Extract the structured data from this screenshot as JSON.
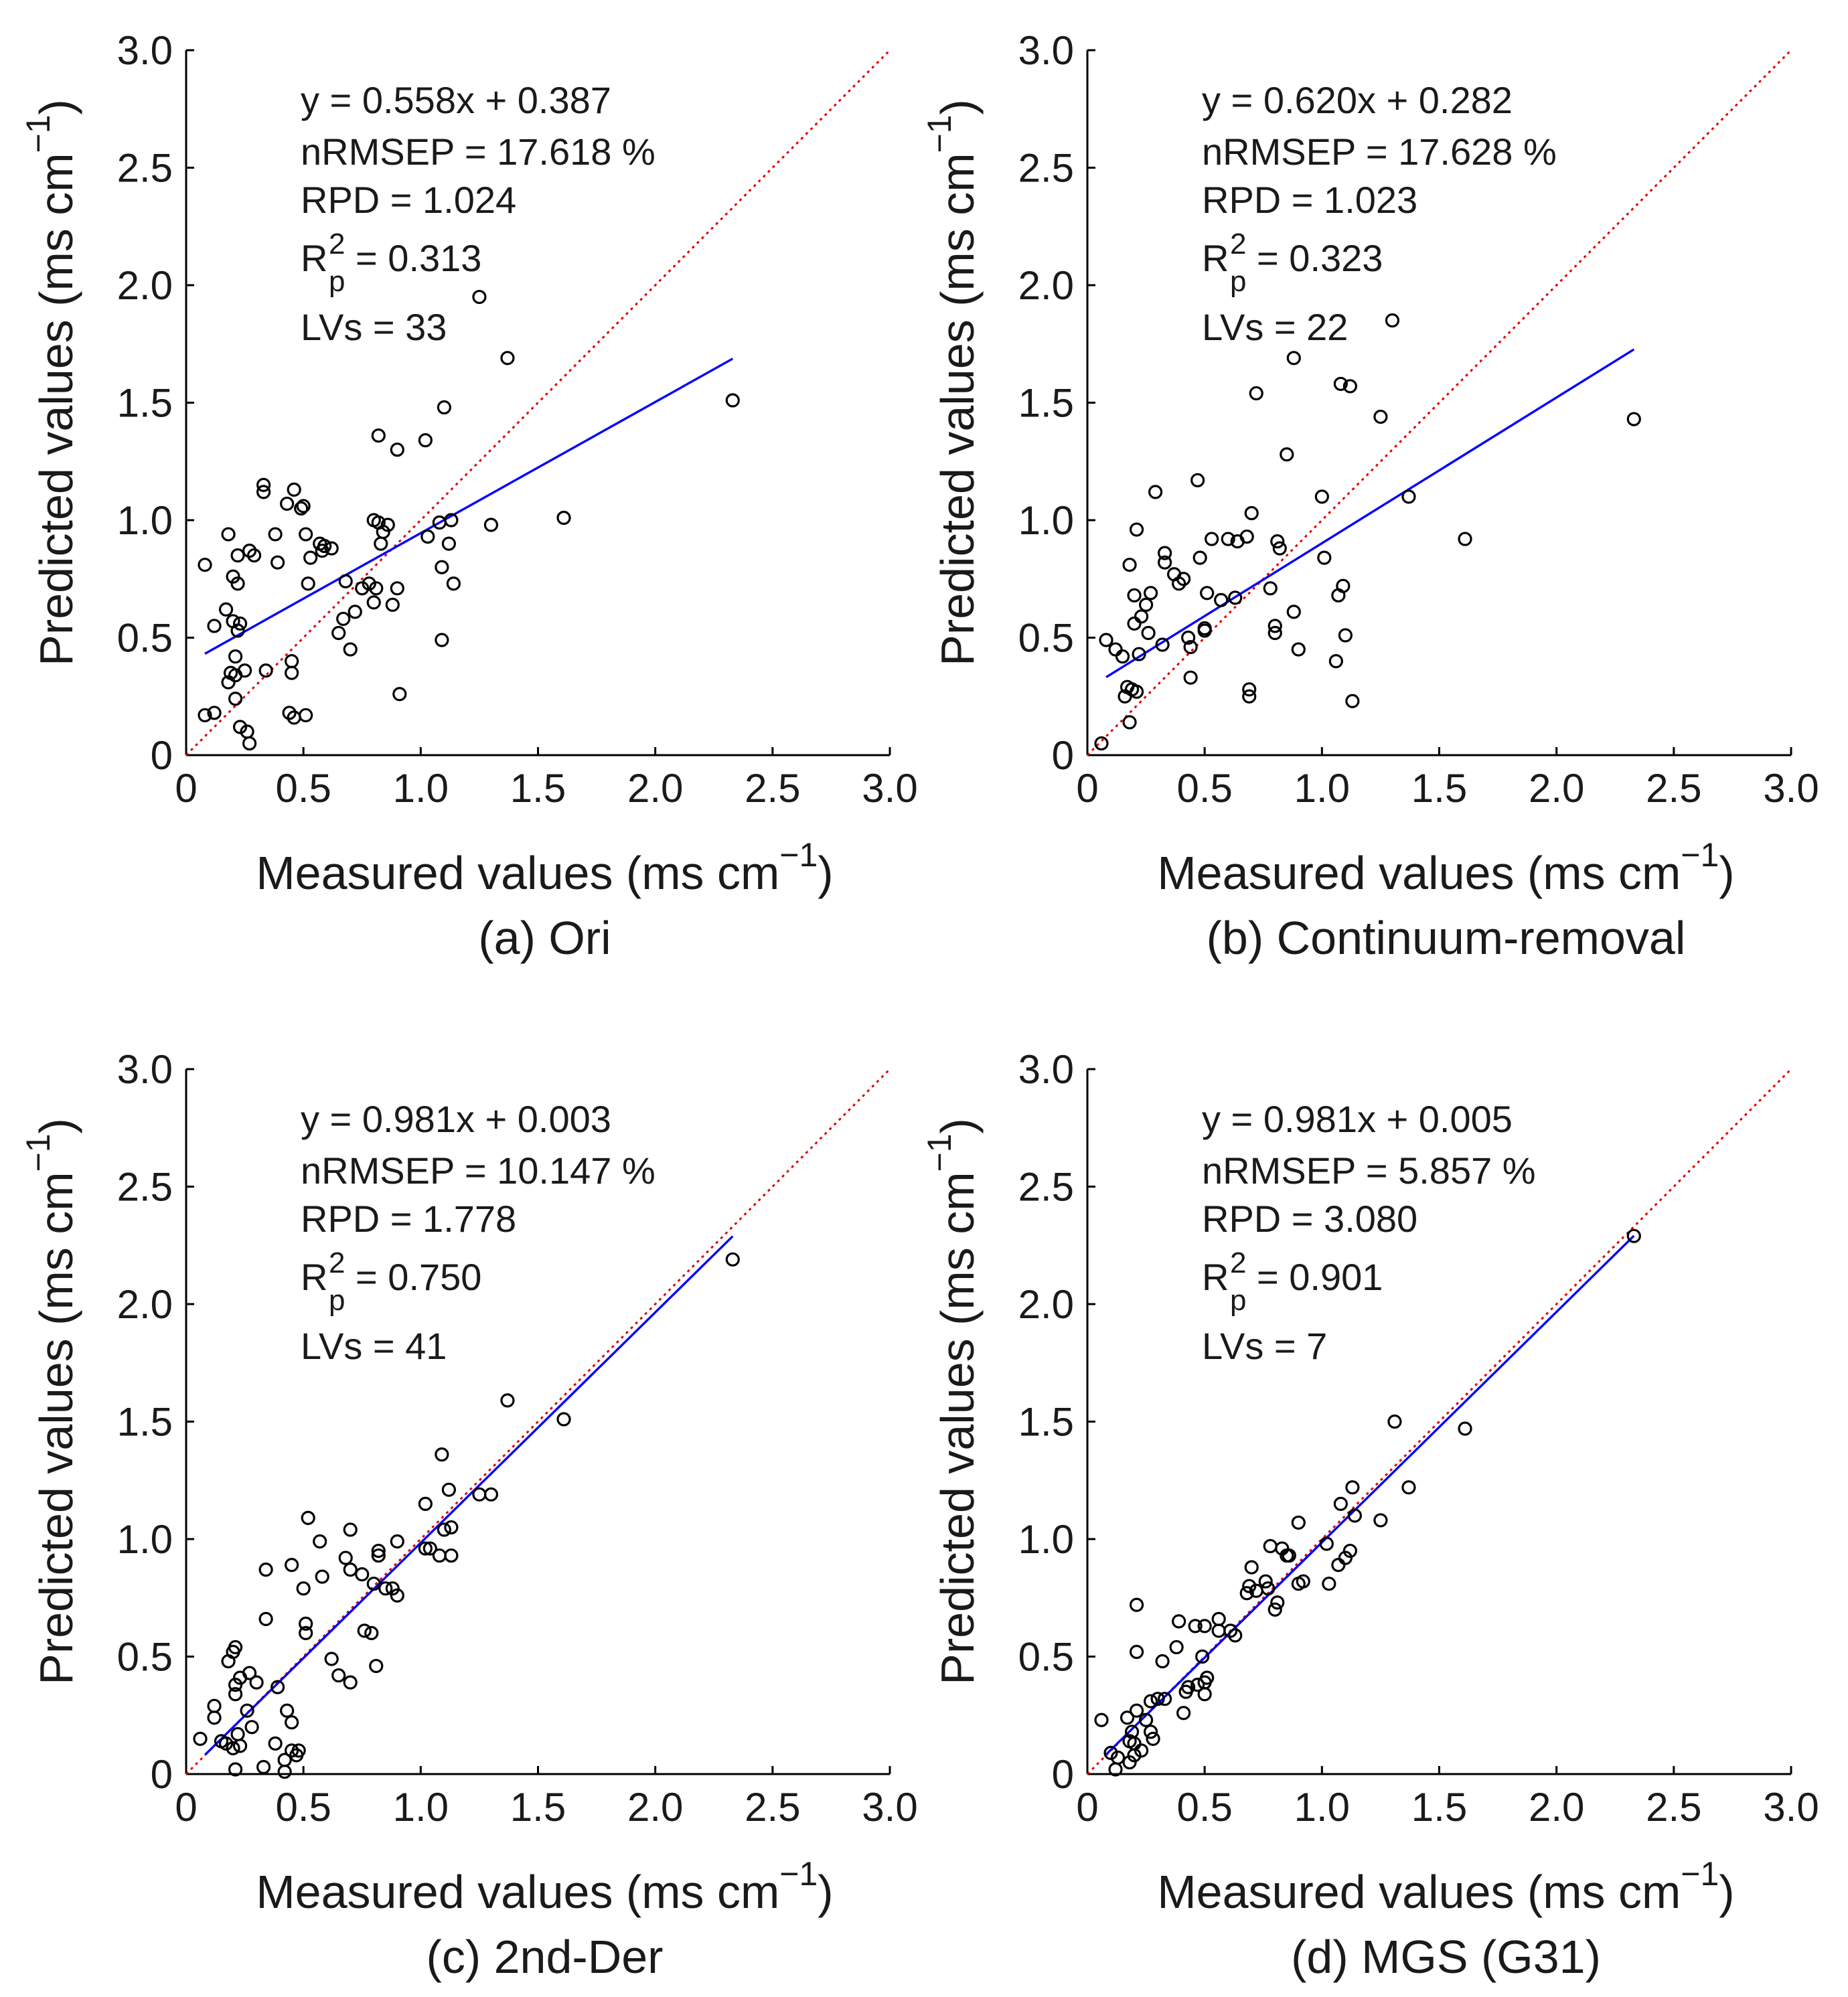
{
  "chart_data": [
    {
      "type": "scatter",
      "caption": "(a) Ori",
      "xlabel": "Measured values (ms cm",
      "ylabel": "Predicted values (ms cm",
      "unit_exponent": "−1",
      "xlim": [
        0,
        3
      ],
      "ylim": [
        0,
        3
      ],
      "xticks": [
        "0",
        "0.5",
        "1.0",
        "1.5",
        "2.0",
        "2.5",
        "3.0"
      ],
      "yticks": [
        "0",
        "0.5",
        "1.0",
        "1.5",
        "2.0",
        "2.5",
        "3.0"
      ],
      "stats": {
        "equation": "y = 0.558x + 0.387",
        "nrmsep": "nRMSEP = 17.618 %",
        "rpd": "RPD = 1.024",
        "r2_base": "R",
        "r2_sup": "2",
        "r2_sub": "p",
        "r2_value": " = 0.313",
        "lvs": "LVs = 33"
      },
      "fit": {
        "slope": 0.558,
        "intercept": 0.387,
        "x_range": [
          0.08,
          2.33
        ]
      },
      "reference_line": "y = x",
      "points": [
        [
          0.08,
          0.81
        ],
        [
          0.08,
          0.17
        ],
        [
          0.12,
          0.18
        ],
        [
          0.12,
          0.55
        ],
        [
          0.17,
          0.62
        ],
        [
          0.18,
          0.94
        ],
        [
          0.18,
          0.31
        ],
        [
          0.19,
          0.35
        ],
        [
          0.2,
          0.76
        ],
        [
          0.2,
          0.57
        ],
        [
          0.21,
          0.42
        ],
        [
          0.21,
          0.24
        ],
        [
          0.21,
          0.34
        ],
        [
          0.22,
          0.73
        ],
        [
          0.22,
          0.53
        ],
        [
          0.22,
          0.85
        ],
        [
          0.23,
          0.56
        ],
        [
          0.23,
          0.12
        ],
        [
          0.25,
          0.36
        ],
        [
          0.26,
          0.1
        ],
        [
          0.27,
          0.05
        ],
        [
          0.27,
          0.87
        ],
        [
          0.29,
          0.85
        ],
        [
          0.33,
          1.15
        ],
        [
          0.33,
          1.12
        ],
        [
          0.34,
          0.36
        ],
        [
          0.38,
          0.94
        ],
        [
          0.39,
          0.82
        ],
        [
          0.43,
          1.07
        ],
        [
          0.44,
          0.18
        ],
        [
          0.45,
          0.4
        ],
        [
          0.45,
          0.35
        ],
        [
          0.46,
          0.16
        ],
        [
          0.46,
          1.13
        ],
        [
          0.49,
          1.05
        ],
        [
          0.5,
          1.06
        ],
        [
          0.51,
          0.94
        ],
        [
          0.51,
          0.17
        ],
        [
          0.52,
          0.73
        ],
        [
          0.53,
          0.84
        ],
        [
          0.57,
          0.9
        ],
        [
          0.58,
          0.87
        ],
        [
          0.59,
          0.89
        ],
        [
          0.62,
          0.88
        ],
        [
          0.65,
          0.52
        ],
        [
          0.67,
          0.58
        ],
        [
          0.68,
          0.74
        ],
        [
          0.7,
          0.45
        ],
        [
          0.72,
          0.61
        ],
        [
          0.75,
          0.71
        ],
        [
          0.78,
          0.73
        ],
        [
          0.8,
          1.0
        ],
        [
          0.8,
          0.65
        ],
        [
          0.81,
          0.71
        ],
        [
          0.82,
          0.99
        ],
        [
          0.82,
          1.36
        ],
        [
          0.83,
          0.9
        ],
        [
          0.84,
          0.95
        ],
        [
          0.86,
          0.98
        ],
        [
          0.88,
          0.64
        ],
        [
          0.9,
          0.71
        ],
        [
          0.9,
          1.3
        ],
        [
          0.91,
          0.26
        ],
        [
          1.02,
          1.34
        ],
        [
          1.03,
          0.93
        ],
        [
          1.08,
          0.99
        ],
        [
          1.09,
          0.49
        ],
        [
          1.09,
          0.8
        ],
        [
          1.1,
          1.48
        ],
        [
          1.12,
          0.9
        ],
        [
          1.13,
          1.0
        ],
        [
          1.14,
          0.73
        ],
        [
          1.25,
          1.95
        ],
        [
          1.3,
          0.98
        ],
        [
          1.37,
          1.69
        ],
        [
          1.61,
          1.01
        ],
        [
          2.33,
          1.51
        ]
      ]
    },
    {
      "type": "scatter",
      "caption": "(b) Continuum-removal",
      "xlabel": "Measured values (ms cm",
      "ylabel": "Predicted values (ms cm",
      "unit_exponent": "−1",
      "xlim": [
        0,
        3
      ],
      "ylim": [
        0,
        3
      ],
      "xticks": [
        "0",
        "0.5",
        "1.0",
        "1.5",
        "2.0",
        "2.5",
        "3.0"
      ],
      "yticks": [
        "0",
        "0.5",
        "1.0",
        "1.5",
        "2.0",
        "2.5",
        "3.0"
      ],
      "stats": {
        "equation": "y = 0.620x + 0.282",
        "nrmsep": "nRMSEP = 17.628 %",
        "rpd": "RPD = 1.023",
        "r2_base": "R",
        "r2_sup": "2",
        "r2_sub": "p",
        "r2_value": " = 0.323",
        "lvs": "LVs = 22"
      },
      "fit": {
        "slope": 0.62,
        "intercept": 0.282,
        "x_range": [
          0.08,
          2.33
        ]
      },
      "reference_line": "y = x",
      "points": [
        [
          0.06,
          0.05
        ],
        [
          0.08,
          0.49
        ],
        [
          0.12,
          0.45
        ],
        [
          0.15,
          0.42
        ],
        [
          0.16,
          0.25
        ],
        [
          0.17,
          0.29
        ],
        [
          0.18,
          0.14
        ],
        [
          0.18,
          0.81
        ],
        [
          0.19,
          0.28
        ],
        [
          0.2,
          0.56
        ],
        [
          0.2,
          0.68
        ],
        [
          0.21,
          0.27
        ],
        [
          0.21,
          0.96
        ],
        [
          0.22,
          0.43
        ],
        [
          0.23,
          0.59
        ],
        [
          0.25,
          0.64
        ],
        [
          0.26,
          0.52
        ],
        [
          0.27,
          0.69
        ],
        [
          0.29,
          1.12
        ],
        [
          0.32,
          0.47
        ],
        [
          0.33,
          0.82
        ],
        [
          0.33,
          0.86
        ],
        [
          0.37,
          0.77
        ],
        [
          0.39,
          0.73
        ],
        [
          0.41,
          0.75
        ],
        [
          0.43,
          0.5
        ],
        [
          0.44,
          0.46
        ],
        [
          0.44,
          0.33
        ],
        [
          0.47,
          1.17
        ],
        [
          0.48,
          0.84
        ],
        [
          0.5,
          0.53
        ],
        [
          0.5,
          0.54
        ],
        [
          0.51,
          0.69
        ],
        [
          0.53,
          0.92
        ],
        [
          0.57,
          0.66
        ],
        [
          0.6,
          0.92
        ],
        [
          0.63,
          0.67
        ],
        [
          0.64,
          0.91
        ],
        [
          0.68,
          0.93
        ],
        [
          0.69,
          0.25
        ],
        [
          0.69,
          0.28
        ],
        [
          0.7,
          1.03
        ],
        [
          0.72,
          1.54
        ],
        [
          0.78,
          0.71
        ],
        [
          0.8,
          0.55
        ],
        [
          0.8,
          0.52
        ],
        [
          0.81,
          0.91
        ],
        [
          0.82,
          0.88
        ],
        [
          0.85,
          1.28
        ],
        [
          0.88,
          0.61
        ],
        [
          0.88,
          1.69
        ],
        [
          0.9,
          0.45
        ],
        [
          1.0,
          1.1
        ],
        [
          1.01,
          0.84
        ],
        [
          1.06,
          0.4
        ],
        [
          1.07,
          0.68
        ],
        [
          1.08,
          1.58
        ],
        [
          1.09,
          0.72
        ],
        [
          1.1,
          0.51
        ],
        [
          1.12,
          1.57
        ],
        [
          1.13,
          0.23
        ],
        [
          1.25,
          1.44
        ],
        [
          1.3,
          1.85
        ],
        [
          1.37,
          1.1
        ],
        [
          1.61,
          0.92
        ],
        [
          2.33,
          1.43
        ]
      ]
    },
    {
      "type": "scatter",
      "caption": "(c) 2nd-Der",
      "xlabel": "Measured values (ms cm",
      "ylabel": "Predicted values (ms cm",
      "unit_exponent": "−1",
      "xlim": [
        0,
        3
      ],
      "ylim": [
        0,
        3
      ],
      "xticks": [
        "0",
        "0.5",
        "1.0",
        "1.5",
        "2.0",
        "2.5",
        "3.0"
      ],
      "yticks": [
        "0",
        "0.5",
        "1.0",
        "1.5",
        "2.0",
        "2.5",
        "3.0"
      ],
      "stats": {
        "equation": "y = 0.981x + 0.003",
        "nrmsep": "nRMSEP = 10.147 %",
        "rpd": "RPD = 1.778",
        "r2_base": "R",
        "r2_sup": "2",
        "r2_sub": "p",
        "r2_value": " = 0.750",
        "lvs": "LVs = 41"
      },
      "fit": {
        "slope": 0.981,
        "intercept": 0.003,
        "x_range": [
          0.08,
          2.33
        ]
      },
      "reference_line": "y = x",
      "points": [
        [
          0.06,
          0.15
        ],
        [
          0.12,
          0.24
        ],
        [
          0.12,
          0.29
        ],
        [
          0.15,
          0.14
        ],
        [
          0.17,
          0.13
        ],
        [
          0.18,
          0.48
        ],
        [
          0.2,
          0.52
        ],
        [
          0.2,
          0.11
        ],
        [
          0.21,
          0.02
        ],
        [
          0.21,
          0.34
        ],
        [
          0.21,
          0.54
        ],
        [
          0.21,
          0.38
        ],
        [
          0.22,
          0.17
        ],
        [
          0.23,
          0.41
        ],
        [
          0.23,
          0.12
        ],
        [
          0.26,
          0.27
        ],
        [
          0.27,
          0.43
        ],
        [
          0.28,
          0.2
        ],
        [
          0.3,
          0.39
        ],
        [
          0.33,
          0.03
        ],
        [
          0.34,
          0.87
        ],
        [
          0.34,
          0.66
        ],
        [
          0.38,
          0.13
        ],
        [
          0.39,
          0.37
        ],
        [
          0.42,
          0.01
        ],
        [
          0.42,
          0.06
        ],
        [
          0.43,
          0.27
        ],
        [
          0.45,
          0.1
        ],
        [
          0.45,
          0.89
        ],
        [
          0.45,
          0.22
        ],
        [
          0.47,
          0.08
        ],
        [
          0.48,
          0.1
        ],
        [
          0.5,
          0.79
        ],
        [
          0.51,
          0.6
        ],
        [
          0.51,
          0.64
        ],
        [
          0.52,
          1.09
        ],
        [
          0.57,
          0.99
        ],
        [
          0.58,
          0.84
        ],
        [
          0.62,
          0.49
        ],
        [
          0.65,
          0.42
        ],
        [
          0.68,
          0.92
        ],
        [
          0.7,
          0.87
        ],
        [
          0.7,
          1.04
        ],
        [
          0.7,
          0.39
        ],
        [
          0.75,
          0.85
        ],
        [
          0.76,
          0.61
        ],
        [
          0.79,
          0.6
        ],
        [
          0.8,
          0.81
        ],
        [
          0.81,
          0.46
        ],
        [
          0.82,
          0.95
        ],
        [
          0.82,
          0.93
        ],
        [
          0.85,
          0.79
        ],
        [
          0.88,
          0.79
        ],
        [
          0.9,
          0.76
        ],
        [
          0.9,
          0.99
        ],
        [
          1.02,
          0.96
        ],
        [
          1.02,
          1.15
        ],
        [
          1.04,
          0.96
        ],
        [
          1.08,
          0.93
        ],
        [
          1.09,
          1.36
        ],
        [
          1.1,
          1.04
        ],
        [
          1.12,
          1.21
        ],
        [
          1.13,
          1.05
        ],
        [
          1.13,
          0.93
        ],
        [
          1.25,
          1.19
        ],
        [
          1.3,
          1.19
        ],
        [
          1.37,
          1.59
        ],
        [
          1.61,
          1.51
        ],
        [
          2.33,
          2.19
        ]
      ]
    },
    {
      "type": "scatter",
      "caption": "(d) MGS (G31)",
      "xlabel": "Measured values (ms cm",
      "ylabel": "Predicted values (ms cm",
      "unit_exponent": "−1",
      "xlim": [
        0,
        3
      ],
      "ylim": [
        0,
        3
      ],
      "xticks": [
        "0",
        "0.5",
        "1.0",
        "1.5",
        "2.0",
        "2.5",
        "3.0"
      ],
      "yticks": [
        "0",
        "0.5",
        "1.0",
        "1.5",
        "2.0",
        "2.5",
        "3.0"
      ],
      "stats": {
        "equation": "y = 0.981x + 0.005",
        "nrmsep": "nRMSEP = 5.857 %",
        "rpd": "RPD = 3.080",
        "r2_base": "R",
        "r2_sup": "2",
        "r2_sub": "p",
        "r2_value": " = 0.901",
        "lvs": "LVs = 7"
      },
      "fit": {
        "slope": 0.981,
        "intercept": 0.005,
        "x_range": [
          0.08,
          2.33
        ]
      },
      "reference_line": "y = x",
      "points": [
        [
          0.06,
          0.23
        ],
        [
          0.1,
          0.09
        ],
        [
          0.12,
          0.02
        ],
        [
          0.13,
          0.07
        ],
        [
          0.17,
          0.24
        ],
        [
          0.18,
          0.14
        ],
        [
          0.18,
          0.05
        ],
        [
          0.19,
          0.18
        ],
        [
          0.2,
          0.13
        ],
        [
          0.2,
          0.08
        ],
        [
          0.21,
          0.52
        ],
        [
          0.21,
          0.72
        ],
        [
          0.21,
          0.27
        ],
        [
          0.23,
          0.1
        ],
        [
          0.25,
          0.23
        ],
        [
          0.27,
          0.31
        ],
        [
          0.27,
          0.18
        ],
        [
          0.28,
          0.15
        ],
        [
          0.3,
          0.32
        ],
        [
          0.32,
          0.48
        ],
        [
          0.33,
          0.32
        ],
        [
          0.38,
          0.54
        ],
        [
          0.39,
          0.65
        ],
        [
          0.41,
          0.26
        ],
        [
          0.42,
          0.35
        ],
        [
          0.43,
          0.37
        ],
        [
          0.46,
          0.63
        ],
        [
          0.47,
          0.38
        ],
        [
          0.49,
          0.5
        ],
        [
          0.5,
          0.34
        ],
        [
          0.5,
          0.39
        ],
        [
          0.5,
          0.63
        ],
        [
          0.51,
          0.41
        ],
        [
          0.56,
          0.61
        ],
        [
          0.56,
          0.66
        ],
        [
          0.61,
          0.61
        ],
        [
          0.63,
          0.59
        ],
        [
          0.68,
          0.77
        ],
        [
          0.69,
          0.8
        ],
        [
          0.7,
          0.88
        ],
        [
          0.72,
          0.78
        ],
        [
          0.76,
          0.82
        ],
        [
          0.77,
          0.79
        ],
        [
          0.78,
          0.97
        ],
        [
          0.8,
          0.7
        ],
        [
          0.81,
          0.73
        ],
        [
          0.83,
          0.96
        ],
        [
          0.85,
          0.93
        ],
        [
          0.86,
          0.93
        ],
        [
          0.9,
          0.81
        ],
        [
          0.9,
          1.07
        ],
        [
          0.92,
          0.82
        ],
        [
          1.02,
          0.98
        ],
        [
          1.03,
          0.81
        ],
        [
          1.07,
          0.89
        ],
        [
          1.08,
          1.15
        ],
        [
          1.1,
          0.92
        ],
        [
          1.12,
          0.95
        ],
        [
          1.13,
          1.22
        ],
        [
          1.14,
          1.1
        ],
        [
          1.25,
          1.08
        ],
        [
          1.31,
          1.5
        ],
        [
          1.37,
          1.22
        ],
        [
          1.61,
          1.47
        ],
        [
          2.33,
          2.29
        ]
      ]
    }
  ]
}
